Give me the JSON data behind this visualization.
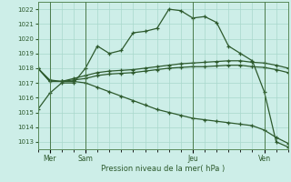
{
  "background_color": "#cdeee8",
  "grid_color": "#a8d8cc",
  "line_color": "#2d5a2d",
  "xlabel": "Pression niveau de la mer( hPa )",
  "ylim": [
    1012.5,
    1022.5
  ],
  "yticks": [
    1013,
    1014,
    1015,
    1016,
    1017,
    1018,
    1019,
    1020,
    1021,
    1022
  ],
  "day_labels": [
    "Mer",
    "Sam",
    "Jeu",
    "Ven"
  ],
  "day_positions": [
    1,
    4,
    13,
    19
  ],
  "n_total": 22,
  "series": [
    [
      1015.2,
      1016.3,
      1017.0,
      1017.0,
      1018.0,
      1019.5,
      1019.0,
      1019.2,
      1020.4,
      1020.5,
      1020.7,
      1022.0,
      1021.9,
      1021.4,
      1021.5,
      1021.1,
      1019.5,
      1019.0,
      1018.5,
      1016.4,
      1013.0,
      1012.65
    ],
    [
      1018.0,
      1017.2,
      1017.1,
      1017.3,
      1017.5,
      1017.7,
      1017.8,
      1017.85,
      1017.9,
      1018.0,
      1018.1,
      1018.2,
      1018.3,
      1018.35,
      1018.4,
      1018.45,
      1018.5,
      1018.5,
      1018.4,
      1018.35,
      1018.2,
      1018.0
    ],
    [
      1018.0,
      1017.1,
      1017.1,
      1017.2,
      1017.3,
      1017.5,
      1017.6,
      1017.65,
      1017.7,
      1017.8,
      1017.9,
      1018.0,
      1018.05,
      1018.1,
      1018.1,
      1018.15,
      1018.2,
      1018.2,
      1018.1,
      1018.05,
      1017.9,
      1017.7
    ],
    [
      1018.0,
      1017.1,
      1017.1,
      1017.1,
      1017.0,
      1016.7,
      1016.4,
      1016.1,
      1015.8,
      1015.5,
      1015.2,
      1015.0,
      1014.8,
      1014.6,
      1014.5,
      1014.4,
      1014.3,
      1014.2,
      1014.1,
      1013.8,
      1013.3,
      1012.9
    ]
  ]
}
